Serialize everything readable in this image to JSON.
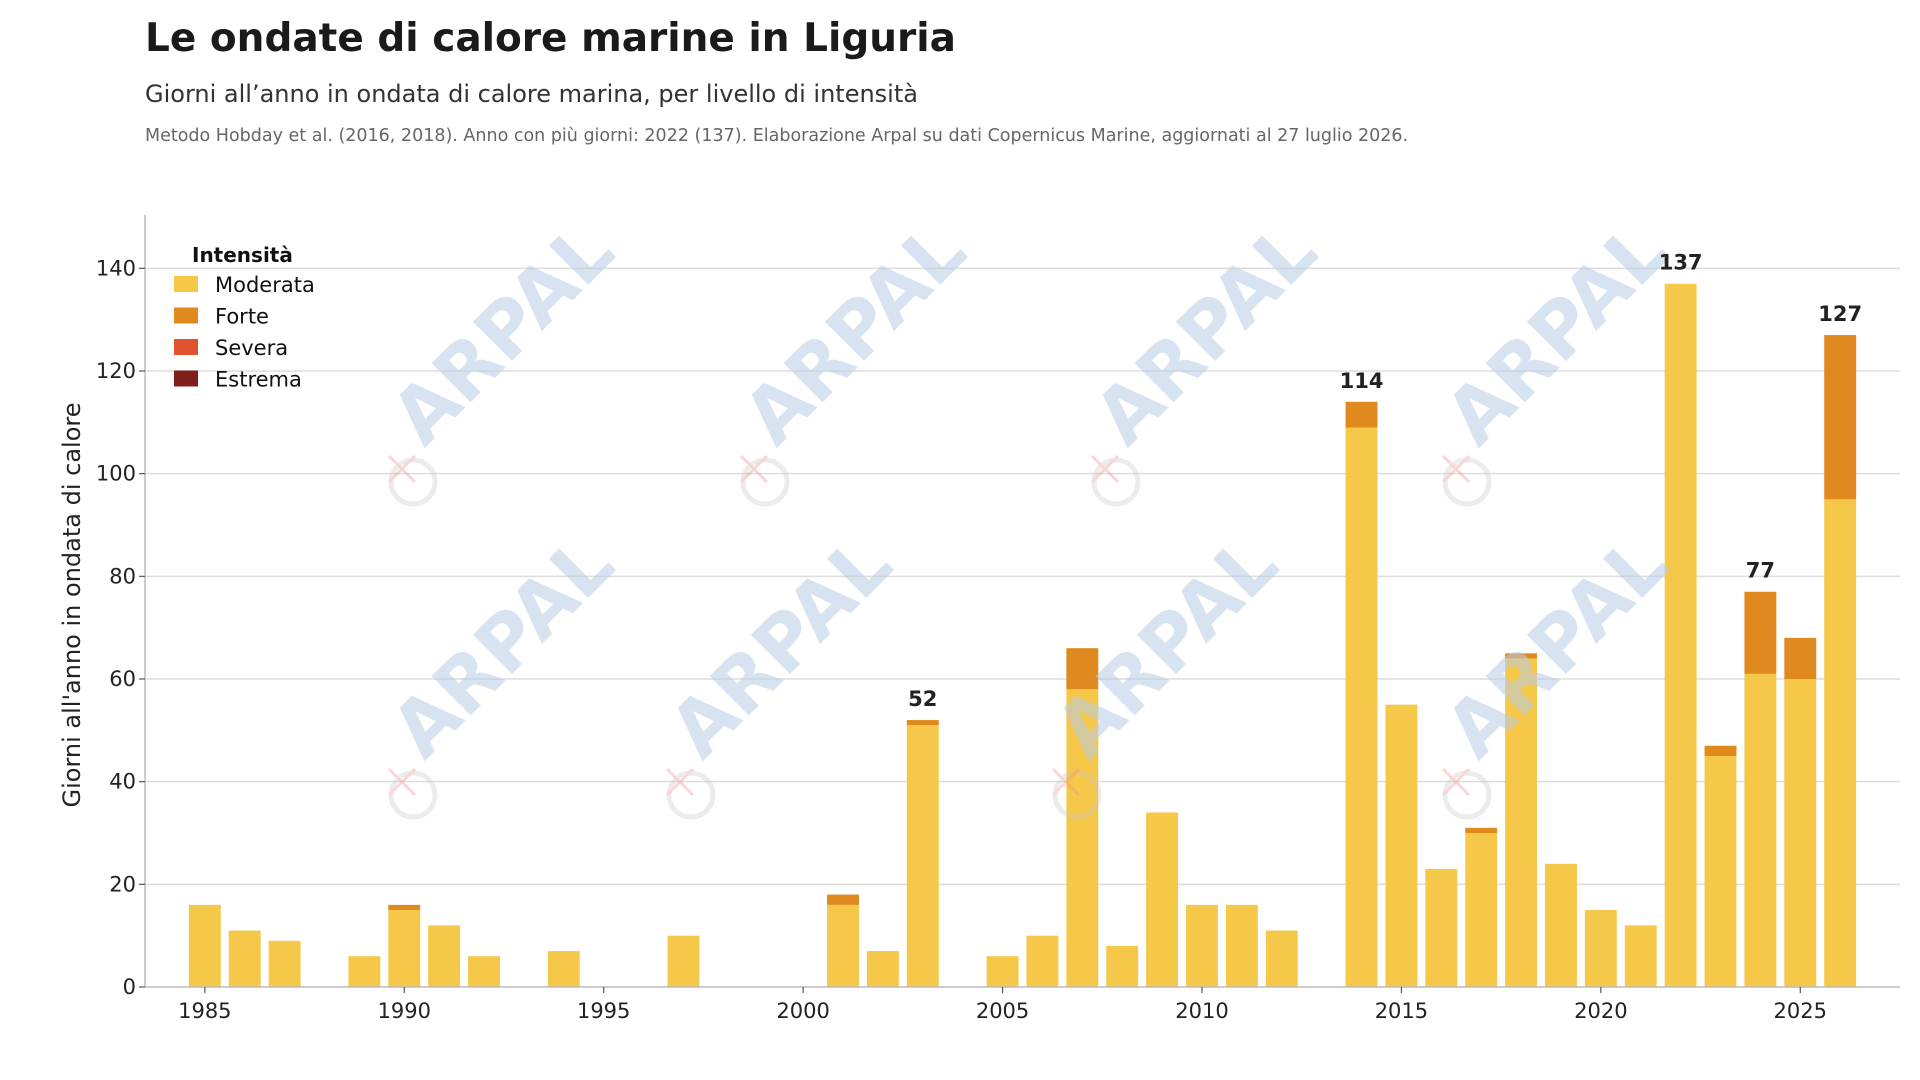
{
  "header": {
    "title": "Le ondate di calore marine in Liguria",
    "subtitle": "Giorni all’anno in ondata di calore marina, per livello di intensità",
    "note": "Metodo Hobday et al. (2016, 2018). Anno con più giorni: 2022 (137). Elaborazione Arpal su dati Copernicus Marine, aggiornati al 27 luglio 2026."
  },
  "watermark": {
    "text": "ARPAL",
    "icon": "arpal-logo-icon"
  },
  "chart_data": {
    "type": "bar",
    "stacked": true,
    "ylabel": "Giorni all'anno in ondata di calore",
    "xlabel": "",
    "ylim": [
      0,
      150
    ],
    "xlim": [
      1983.5,
      2027.5
    ],
    "yticks": [
      0,
      20,
      40,
      60,
      80,
      100,
      120,
      140
    ],
    "xticks": [
      1985,
      1990,
      1995,
      2000,
      2005,
      2010,
      2015,
      2020,
      2025
    ],
    "grid": "y",
    "legend": {
      "title": "Intensità",
      "position": "top-left"
    },
    "x": [
      1985,
      1986,
      1987,
      1989,
      1990,
      1991,
      1992,
      1994,
      1997,
      2001,
      2002,
      2003,
      2005,
      2006,
      2007,
      2008,
      2009,
      2010,
      2011,
      2012,
      2014,
      2015,
      2016,
      2017,
      2018,
      2019,
      2020,
      2021,
      2022,
      2023,
      2024,
      2025,
      2026
    ],
    "series": [
      {
        "name": "Moderata",
        "color": "#f5c84a",
        "values": [
          16,
          11,
          9,
          6,
          15,
          12,
          6,
          7,
          10,
          16,
          7,
          51,
          6,
          10,
          58,
          8,
          34,
          16,
          16,
          11,
          109,
          55,
          23,
          30,
          64,
          24,
          15,
          12,
          137,
          45,
          61,
          60,
          95
        ]
      },
      {
        "name": "Forte",
        "color": "#e0891f",
        "values": [
          0,
          0,
          0,
          0,
          1,
          0,
          0,
          0,
          0,
          2,
          0,
          1,
          0,
          0,
          8,
          0,
          0,
          0,
          0,
          0,
          5,
          0,
          0,
          1,
          1,
          0,
          0,
          0,
          0,
          2,
          16,
          8,
          32
        ]
      },
      {
        "name": "Severa",
        "color": "#e0532e",
        "values": [
          0,
          0,
          0,
          0,
          0,
          0,
          0,
          0,
          0,
          0,
          0,
          0,
          0,
          0,
          0,
          0,
          0,
          0,
          0,
          0,
          0,
          0,
          0,
          0,
          0,
          0,
          0,
          0,
          0,
          0,
          0,
          0,
          0
        ]
      },
      {
        "name": "Estrema",
        "color": "#7f1f1c",
        "values": [
          0,
          0,
          0,
          0,
          0,
          0,
          0,
          0,
          0,
          0,
          0,
          0,
          0,
          0,
          0,
          0,
          0,
          0,
          0,
          0,
          0,
          0,
          0,
          0,
          0,
          0,
          0,
          0,
          0,
          0,
          0,
          0,
          0
        ]
      }
    ],
    "annotations": [
      {
        "x": 2003,
        "y": 52,
        "label": "52"
      },
      {
        "x": 2014,
        "y": 114,
        "label": "114"
      },
      {
        "x": 2022,
        "y": 137,
        "label": "137"
      },
      {
        "x": 2024,
        "y": 77,
        "label": "77"
      },
      {
        "x": 2026,
        "y": 127,
        "label": "127"
      }
    ]
  }
}
